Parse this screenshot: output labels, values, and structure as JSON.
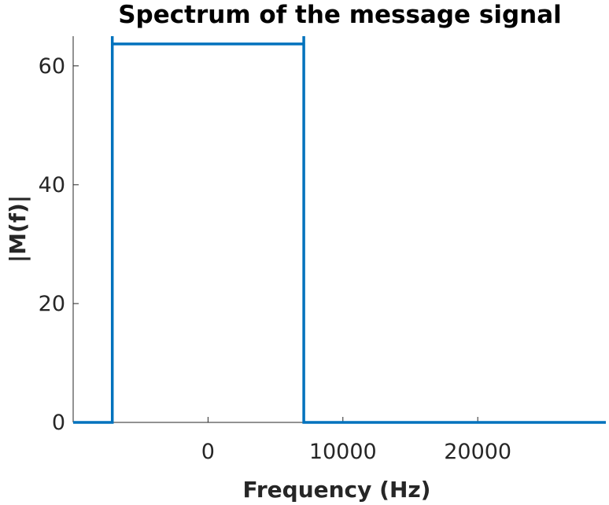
{
  "chart_data": {
    "type": "line",
    "title": "Spectrum of the message signal",
    "xlabel": "Frequency (Hz)",
    "ylabel": "|M(f)|",
    "xlim": [
      -10000,
      29500
    ],
    "ylim": [
      0,
      65
    ],
    "x_ticks": [
      {
        "value": 0,
        "label": "0"
      },
      {
        "value": 10000,
        "label": "10000"
      },
      {
        "value": 20000,
        "label": "20000"
      }
    ],
    "y_ticks": [
      {
        "value": 0,
        "label": "0"
      },
      {
        "value": 20,
        "label": "20"
      },
      {
        "value": 40,
        "label": "40"
      },
      {
        "value": 60,
        "label": "60"
      }
    ],
    "grid": false,
    "line_color": "#0072BD",
    "series": [
      {
        "x": [
          -10000,
          -7100,
          -7100,
          -7100,
          7100,
          7100,
          7100,
          29500
        ],
        "y": [
          0,
          0,
          65,
          63.7,
          63.7,
          65,
          0,
          0
        ]
      }
    ]
  }
}
